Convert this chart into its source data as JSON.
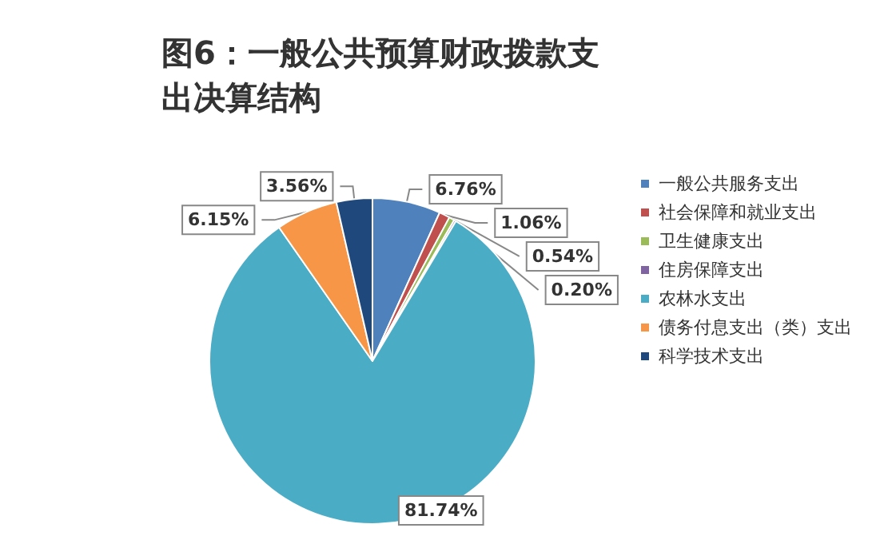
{
  "chart_data": {
    "type": "pie",
    "title": "图6：一般公共预算财政拨款支出决算结构",
    "categories": [
      "一般公共服务支出",
      "社会保障和就业支出",
      "卫生健康支出",
      "住房保障支出",
      "农林水支出",
      "债务付息支出（类）支出",
      "科学技术支出"
    ],
    "values": [
      6.76,
      1.06,
      0.54,
      0.2,
      81.74,
      6.15,
      3.56
    ],
    "value_labels": [
      "6.76%",
      "1.06%",
      "0.54%",
      "0.20%",
      "81.74%",
      "6.15%",
      "3.56%"
    ],
    "colors": [
      "#4f81bd",
      "#c0504d",
      "#9bbb59",
      "#8064a2",
      "#4bacc6",
      "#f79646",
      "#1f497d"
    ],
    "legend": "right"
  }
}
